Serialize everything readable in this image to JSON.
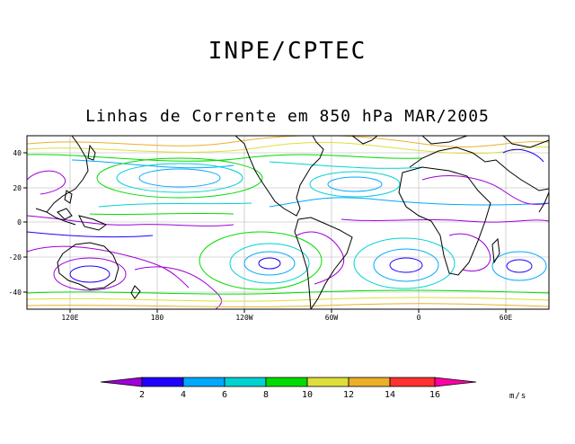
{
  "header": {
    "org": "INPE/CPTEC",
    "title": "Linhas de Corrente em 850 hPa MAR/2005"
  },
  "map": {
    "y_ticks": [
      "40",
      "20",
      "0",
      "-20",
      "-40"
    ],
    "x_ticks": [
      "120E",
      "180",
      "120W",
      "60W",
      "0",
      "60E"
    ]
  },
  "colorbar": {
    "units": "m/s",
    "labels": [
      "2",
      "4",
      "6",
      "8",
      "10",
      "12",
      "14",
      "16"
    ],
    "colors": [
      "#9e00d9",
      "#1f00ff",
      "#00a8ff",
      "#00d2d2",
      "#00dc00",
      "#dede3a",
      "#ebaf2a",
      "#ff3030",
      "#ff00a8"
    ]
  },
  "colors": {
    "frame": "#000000",
    "grid": "#b4b4b4",
    "coast": "#000000"
  }
}
